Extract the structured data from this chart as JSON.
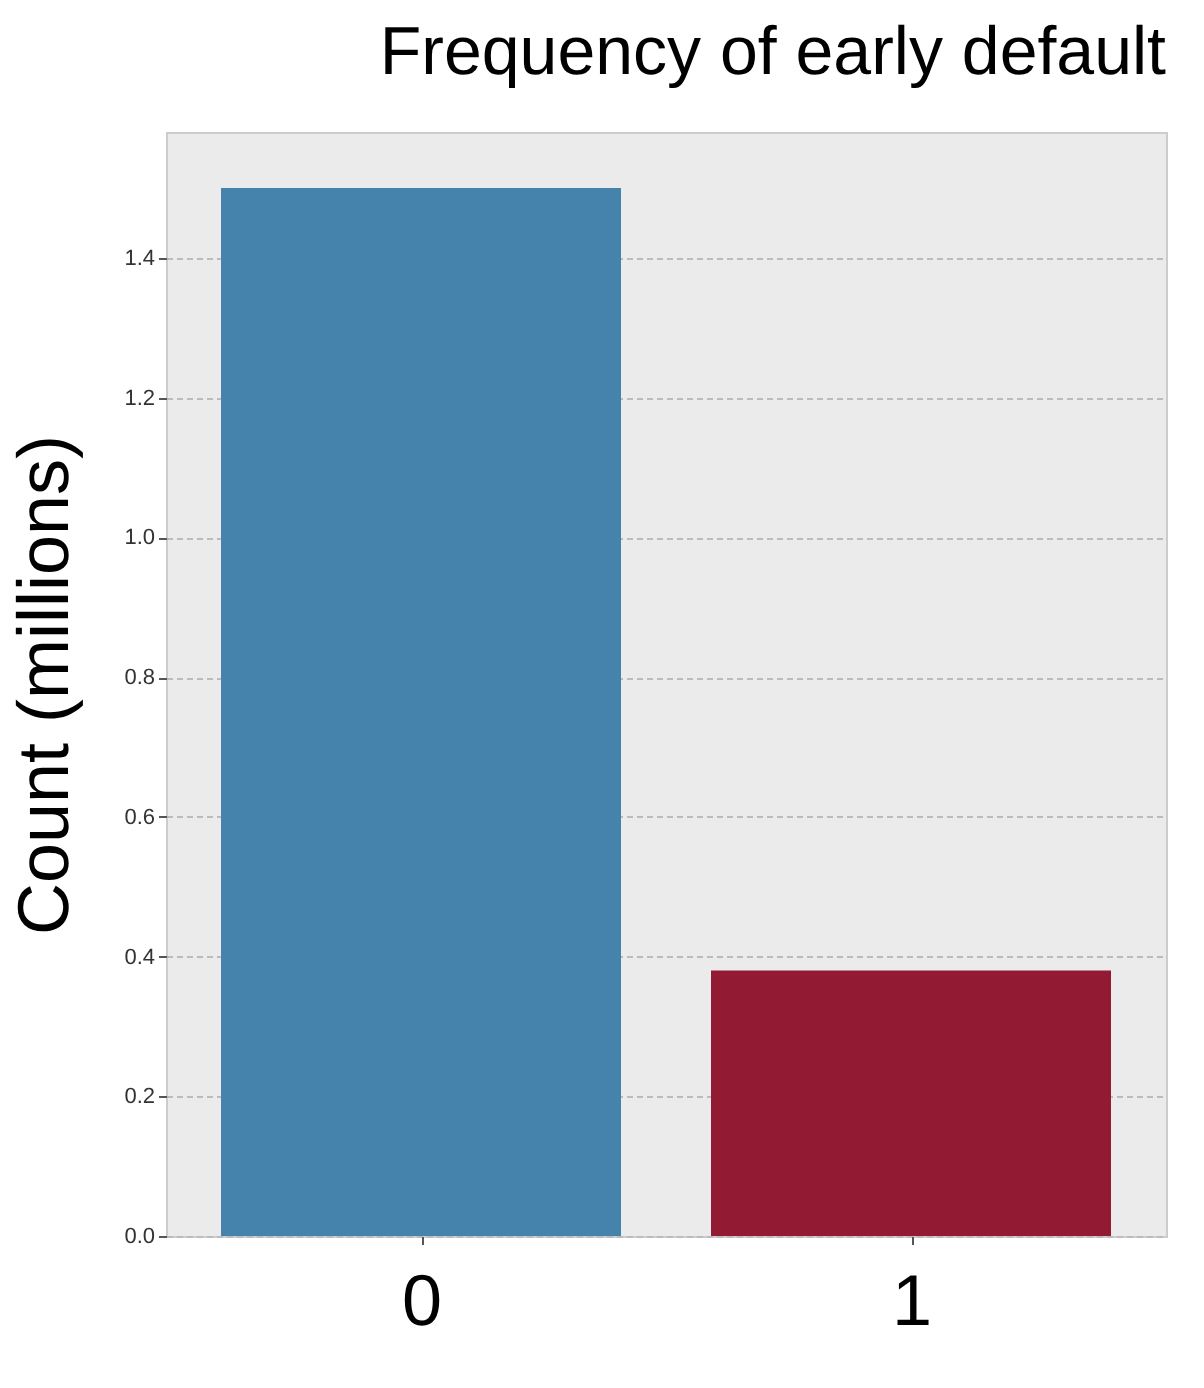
{
  "chart_data": {
    "type": "bar",
    "title": "Frequency of early default",
    "ylabel": "Count (millions)",
    "categories": [
      "0",
      "1"
    ],
    "values": [
      1.5,
      0.38
    ],
    "colors": [
      "#4583ad",
      "#921b33"
    ],
    "ylim": [
      0,
      1.58
    ],
    "yticks": [
      {
        "value": 0,
        "label": "0.0"
      },
      {
        "value": 0.2,
        "label": "0.2"
      },
      {
        "value": 0.4,
        "label": "0.4"
      },
      {
        "value": 0.6,
        "label": "0.6"
      },
      {
        "value": 0.8,
        "label": "0.8"
      },
      {
        "value": 1.0,
        "label": "1.0"
      },
      {
        "value": 1.2,
        "label": "1.2"
      },
      {
        "value": 1.4,
        "label": "1.4"
      }
    ],
    "grid": "y",
    "legend": false
  }
}
